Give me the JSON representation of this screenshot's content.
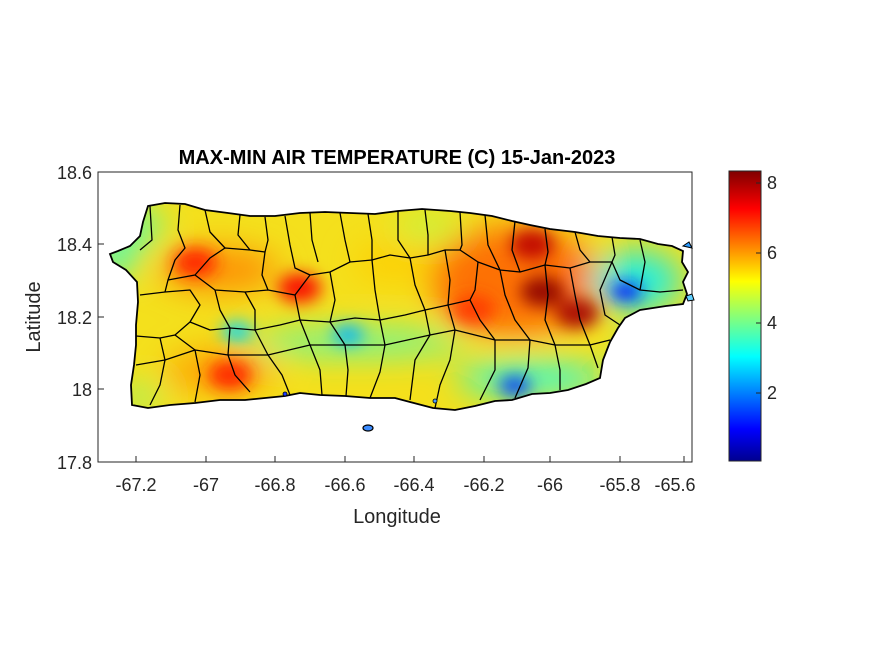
{
  "title": "MAX-MIN AIR TEMPERATURE (C) 15-Jan-2023",
  "xlabel": "Longitude",
  "ylabel": "Latitude",
  "x_ticks": [
    "-67.2",
    "-67",
    "-66.8",
    "-66.6",
    "-66.4",
    "-66.2",
    "-66",
    "-65.8",
    "-65.6"
  ],
  "y_ticks": [
    "18.6",
    "18.4",
    "18.2",
    "18",
    "17.8"
  ],
  "colorbar_ticks": [
    "8",
    "6",
    "4",
    "2"
  ],
  "map": {
    "region": "Puerto Rico",
    "colormap": "jet",
    "value_range": [
      0,
      8.3
    ],
    "x_range": [
      -67.3,
      -65.59
    ],
    "y_range": [
      17.8,
      18.6
    ],
    "hotspots": [
      {
        "lon": -66.02,
        "lat": 18.27,
        "value": 8.2
      },
      {
        "lon": -66.05,
        "lat": 18.4,
        "value": 7.8
      },
      {
        "lon": -65.92,
        "lat": 18.21,
        "value": 8.0
      },
      {
        "lon": -66.72,
        "lat": 18.28,
        "value": 7.3
      },
      {
        "lon": -67.02,
        "lat": 18.35,
        "value": 7.0
      },
      {
        "lon": -66.92,
        "lat": 18.04,
        "value": 7.0
      },
      {
        "lon": -66.22,
        "lat": 18.22,
        "value": 6.8
      }
    ],
    "coldspots": [
      {
        "lon": -65.78,
        "lat": 18.27,
        "value": 1.2
      },
      {
        "lon": -66.1,
        "lat": 18.01,
        "value": 1.5
      },
      {
        "lon": -66.58,
        "lat": 18.15,
        "value": 2.5
      },
      {
        "lon": -66.9,
        "lat": 18.16,
        "value": 2.8
      }
    ]
  },
  "colors": {
    "land_base": "#f2e21e",
    "coast": "#000000"
  }
}
